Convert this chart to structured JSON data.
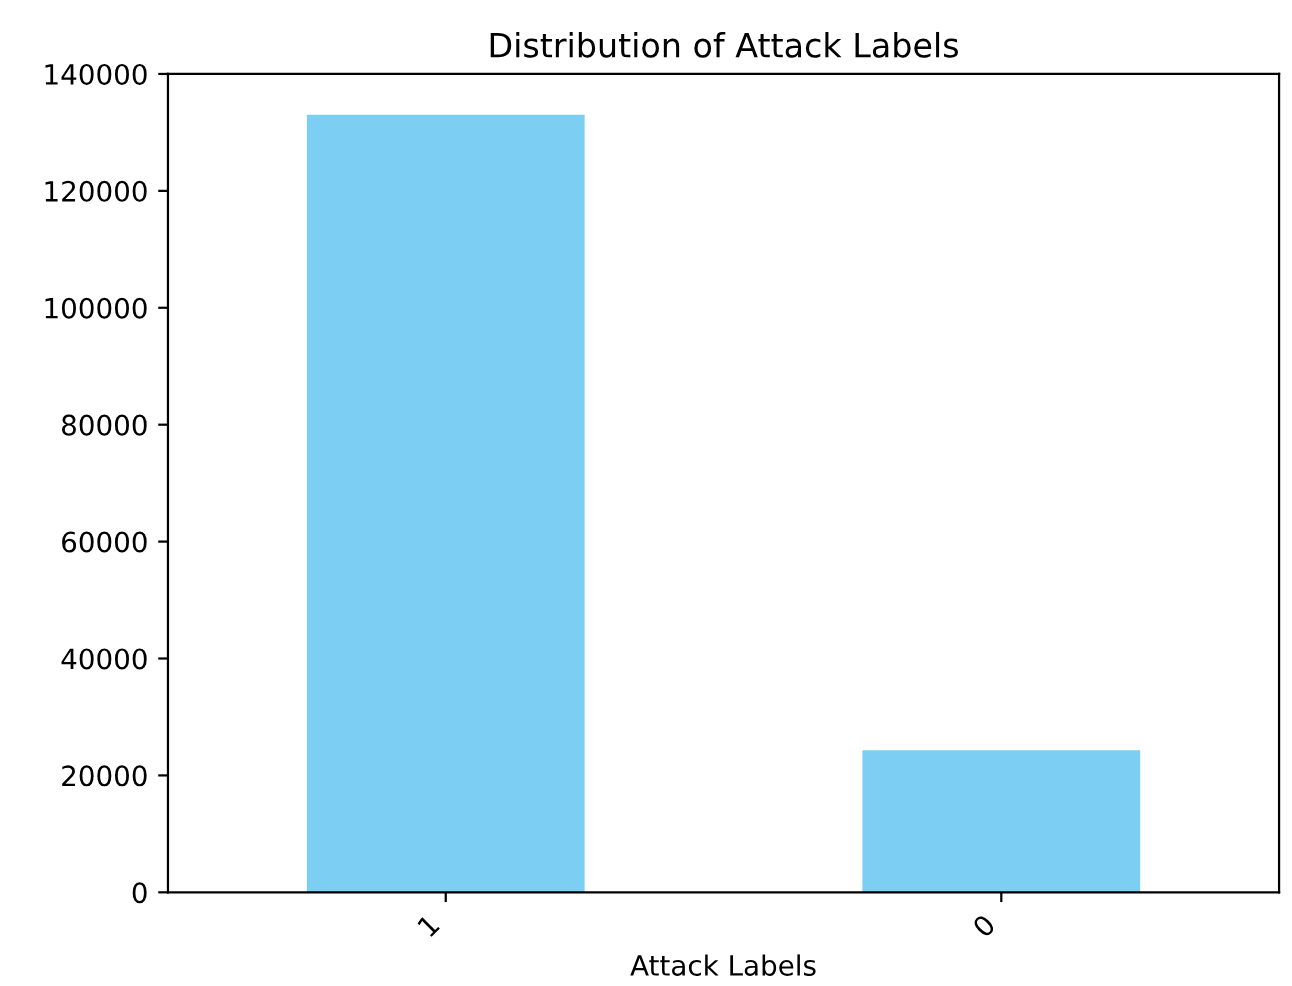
{
  "chart_data": {
    "type": "bar",
    "title": "Distribution of Attack Labels",
    "xlabel": "Attack Labels",
    "categories": [
      "1",
      "0"
    ],
    "values": [
      133000,
      24300
    ],
    "color": "#7ccff2",
    "ylim": [
      0,
      140000
    ],
    "yticks": [
      0,
      20000,
      40000,
      60000,
      80000,
      100000,
      120000,
      140000
    ],
    "grid": false
  }
}
